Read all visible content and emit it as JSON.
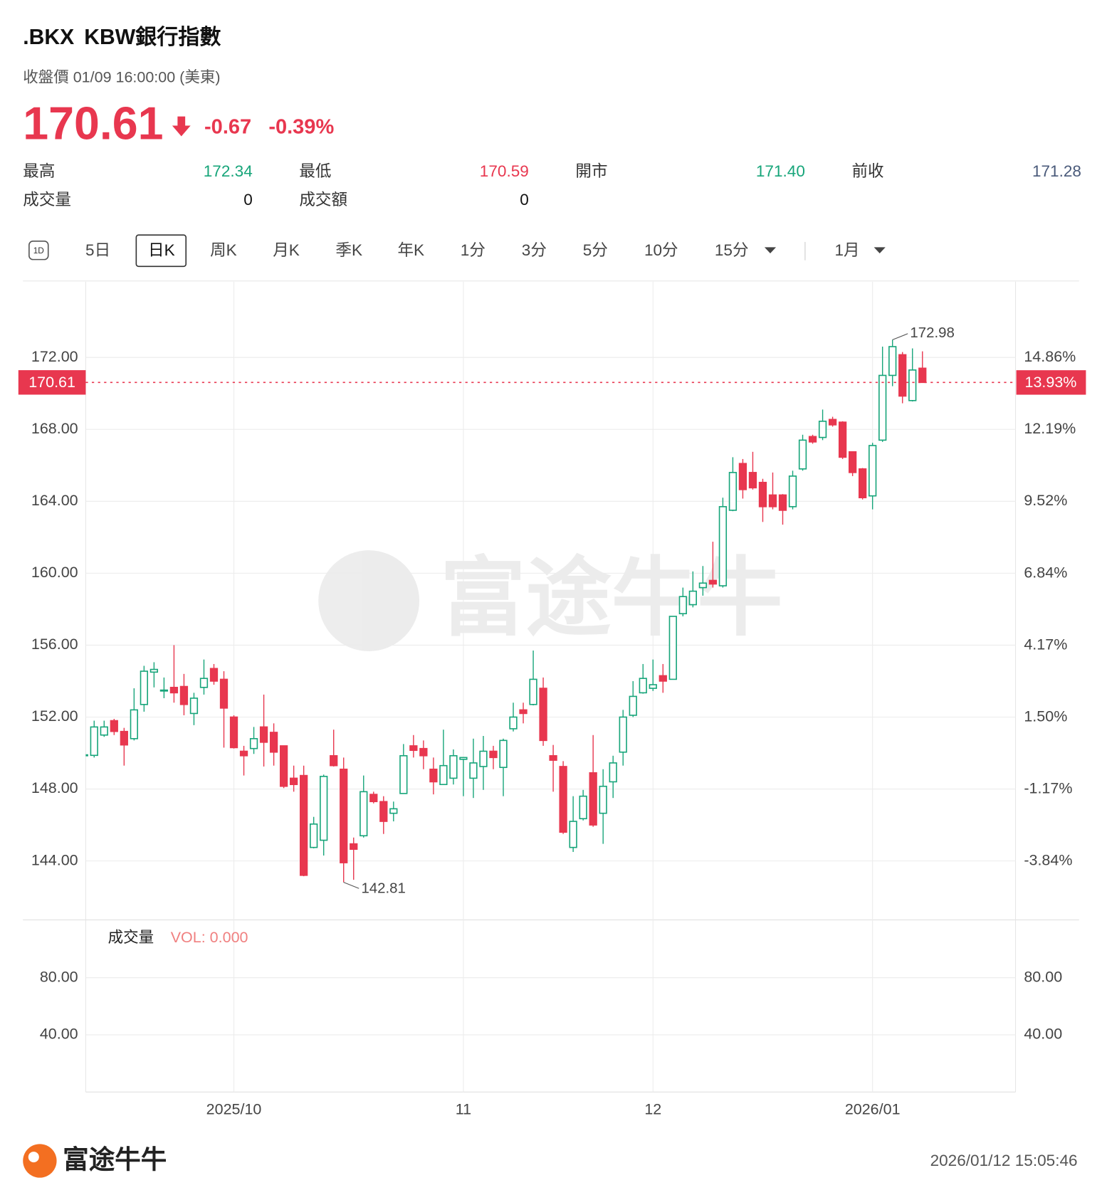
{
  "header": {
    "symbol": ".BKX",
    "name": "KBW銀行指數",
    "status": "收盤價 01/09 16:00:00 (美東)",
    "price": "170.61",
    "change": "-0.67",
    "change_pct": "-0.39%"
  },
  "stats": [
    {
      "label": "最高",
      "value": "172.34"
    },
    {
      "label": "最低",
      "value": "170.59"
    },
    {
      "label": "開市",
      "value": "171.40"
    },
    {
      "label": "前收",
      "value": "171.28"
    },
    {
      "label": "成交量",
      "value": "0"
    },
    {
      "label": "成交額",
      "value": "0"
    }
  ],
  "tabs": {
    "icon": "1D",
    "items": [
      "5日",
      "日K",
      "周K",
      "月K",
      "季K",
      "年K",
      "1分",
      "3分",
      "5分",
      "10分",
      "15分",
      "1月"
    ],
    "active": "日K"
  },
  "chart_data": [
    {
      "type": "candlestick",
      "up_color": "#17a57a",
      "down_color": "#e8374f",
      "grid": true,
      "categories": [
        null,
        null,
        null,
        null,
        null,
        null,
        null,
        null,
        null,
        null,
        null,
        null,
        null,
        null,
        null,
        "2025/10",
        null,
        null,
        null,
        null,
        null,
        null,
        null,
        null,
        null,
        null,
        null,
        null,
        null,
        null,
        null,
        null,
        null,
        null,
        null,
        null,
        null,
        null,
        "11",
        null,
        null,
        null,
        null,
        null,
        null,
        null,
        null,
        null,
        null,
        null,
        null,
        null,
        null,
        null,
        null,
        null,
        null,
        "12",
        null,
        null,
        null,
        null,
        null,
        null,
        null,
        null,
        null,
        null,
        null,
        null,
        null,
        null,
        null,
        null,
        null,
        null,
        null,
        null,
        null,
        "2026/01",
        null,
        null,
        null,
        null,
        null
      ],
      "open": [
        149.85,
        149.87,
        151.0,
        151.8,
        151.2,
        150.8,
        152.7,
        154.5,
        153.45,
        153.65,
        153.7,
        152.2,
        153.65,
        154.7,
        154.1,
        152.0,
        150.1,
        150.25,
        151.45,
        151.15,
        150.4,
        148.6,
        148.75,
        144.75,
        145.15,
        149.85,
        149.1,
        144.95,
        145.4,
        147.7,
        147.3,
        146.65,
        147.75,
        150.4,
        150.25,
        149.1,
        148.25,
        148.6,
        149.65,
        148.6,
        149.25,
        150.1,
        149.2,
        151.35,
        152.4,
        152.7,
        153.6,
        149.85,
        149.25,
        144.75,
        146.35,
        148.9,
        146.65,
        148.4,
        150.05,
        152.1,
        153.35,
        153.6,
        154.3,
        154.1,
        157.75,
        158.25,
        159.2,
        159.6,
        159.3,
        163.5,
        166.1,
        165.6,
        165.05,
        164.35,
        164.35,
        163.7,
        165.8,
        167.6,
        167.55,
        168.55,
        168.4,
        166.75,
        165.8,
        164.3,
        167.4,
        171.0,
        172.15,
        169.6,
        171.4
      ],
      "high": [
        150.0,
        151.8,
        151.8,
        151.9,
        151.4,
        153.6,
        154.85,
        155.05,
        154.2,
        156.0,
        154.4,
        153.35,
        155.2,
        154.95,
        154.55,
        152.1,
        150.4,
        151.45,
        153.25,
        151.65,
        150.4,
        149.3,
        149.3,
        146.45,
        148.8,
        151.3,
        149.75,
        145.3,
        148.75,
        147.85,
        147.6,
        147.3,
        150.5,
        151.0,
        150.7,
        149.75,
        151.3,
        150.2,
        149.75,
        150.8,
        150.95,
        150.4,
        150.8,
        152.8,
        152.8,
        155.7,
        154.2,
        150.45,
        149.55,
        147.6,
        147.95,
        151.0,
        149.1,
        149.85,
        152.4,
        154.0,
        154.95,
        155.2,
        154.95,
        157.6,
        159.2,
        160.1,
        160.4,
        161.75,
        164.2,
        166.45,
        166.35,
        166.75,
        165.25,
        165.6,
        164.4,
        165.7,
        167.7,
        167.7,
        169.1,
        168.7,
        168.45,
        166.75,
        165.85,
        167.25,
        172.6,
        172.98,
        172.3,
        172.5,
        172.34
      ],
      "low": [
        149.8,
        149.75,
        150.9,
        151.0,
        149.3,
        150.7,
        152.3,
        153.65,
        153.05,
        152.8,
        152.1,
        151.55,
        153.25,
        153.8,
        150.3,
        150.25,
        148.75,
        149.95,
        149.25,
        149.3,
        148.05,
        147.85,
        143.15,
        144.7,
        144.3,
        149.25,
        142.81,
        142.95,
        145.3,
        147.2,
        145.5,
        146.2,
        147.75,
        149.75,
        149.1,
        147.7,
        148.25,
        148.25,
        147.6,
        147.5,
        147.95,
        149.1,
        147.6,
        151.2,
        151.65,
        152.65,
        150.4,
        147.85,
        145.5,
        144.5,
        146.25,
        145.9,
        144.95,
        147.5,
        149.3,
        152.0,
        153.3,
        153.45,
        153.35,
        154.1,
        157.6,
        158.1,
        158.75,
        159.2,
        159.2,
        163.45,
        164.15,
        164.65,
        162.85,
        163.55,
        162.7,
        163.55,
        165.7,
        167.2,
        167.4,
        168.15,
        166.35,
        165.4,
        164.1,
        163.55,
        167.3,
        170.4,
        169.45,
        169.55,
        170.59
      ],
      "close": [
        149.9,
        151.45,
        151.45,
        151.2,
        150.45,
        152.4,
        154.55,
        154.65,
        153.5,
        153.35,
        152.7,
        153.05,
        154.15,
        154.0,
        152.5,
        150.3,
        149.85,
        150.8,
        150.6,
        150.05,
        148.15,
        148.25,
        143.2,
        146.05,
        148.7,
        149.3,
        143.9,
        144.65,
        147.85,
        147.3,
        146.2,
        146.9,
        149.85,
        150.15,
        149.85,
        148.4,
        149.3,
        149.85,
        149.75,
        149.45,
        150.1,
        149.75,
        150.7,
        152.0,
        152.2,
        154.1,
        150.7,
        149.6,
        145.6,
        146.2,
        147.6,
        146.0,
        148.15,
        149.45,
        152.0,
        153.15,
        154.15,
        153.8,
        154.0,
        157.6,
        158.7,
        159.0,
        159.45,
        159.4,
        163.7,
        165.6,
        164.65,
        164.75,
        163.7,
        163.7,
        163.5,
        165.4,
        167.4,
        167.3,
        168.45,
        168.25,
        166.45,
        165.6,
        164.2,
        167.1,
        171.0,
        172.6,
        169.85,
        171.3,
        170.61
      ],
      "ylim": [
        140.81,
        176.21
      ],
      "yticks": [
        {
          "value": 172,
          "label": "172.00"
        },
        {
          "value": 168,
          "label": "168.00"
        },
        {
          "value": 164,
          "label": "164.00"
        },
        {
          "value": 160,
          "label": "160.00"
        },
        {
          "value": 156,
          "label": "156.00"
        },
        {
          "value": 152,
          "label": "152.00"
        },
        {
          "value": 148,
          "label": "148.00"
        },
        {
          "value": 144,
          "label": "144.00"
        }
      ],
      "y2lim": [
        -5.96,
        17.67
      ],
      "y2ticks": [
        {
          "value": 14.86,
          "label": "14.86%"
        },
        {
          "value": 12.19,
          "label": "12.19%"
        },
        {
          "value": 9.52,
          "label": "9.52%"
        },
        {
          "value": 6.84,
          "label": "6.84%"
        },
        {
          "value": 4.17,
          "label": "4.17%"
        },
        {
          "value": 1.5,
          "label": "1.50%"
        },
        {
          "value": -1.17,
          "label": "-1.17%"
        },
        {
          "value": -3.84,
          "label": "-3.84%"
        }
      ],
      "price_line": {
        "value": 170.61,
        "percent": {
          "value": 13.93,
          "label": "13.93%"
        }
      }
    },
    {
      "type": "volume",
      "title": "成交量",
      "indicator": "VOL: 0.000",
      "ylim": [
        0,
        120
      ],
      "yticks": [
        {
          "value": 80,
          "label": "80.00"
        },
        {
          "value": 40,
          "label": "40.00"
        }
      ],
      "grid": true
    }
  ],
  "footer": {
    "brand": "富途牛牛",
    "timestamp": "2026/01/12 15:05:46"
  }
}
